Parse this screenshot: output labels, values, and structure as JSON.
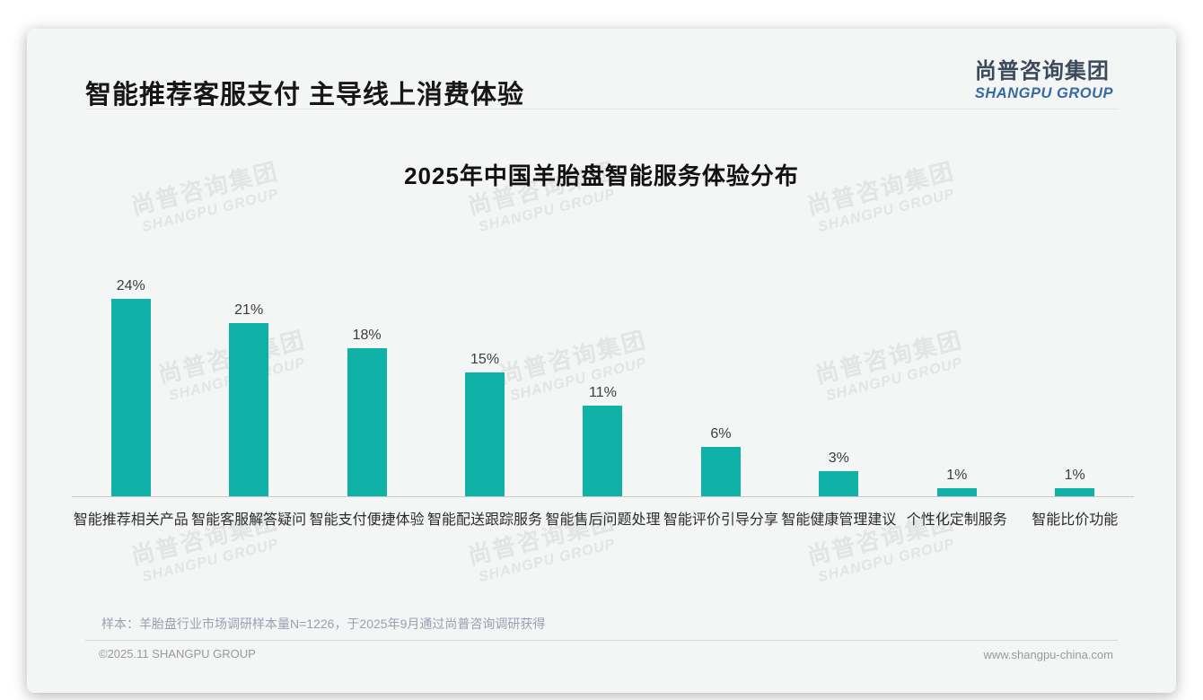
{
  "page": {
    "title": "智能推荐客服支付 主导线上消费体验",
    "logo": {
      "cn": "尚普咨询集团",
      "en": "SHANGPU GROUP"
    },
    "watermark": {
      "cn": "尚普咨询集团",
      "en": "SHANGPU GROUP"
    },
    "note": "样本：羊胎盘行业市场调研样本量N=1226，于2025年9月通过尚普咨询调研获得",
    "footer": {
      "left": "©2025.11 SHANGPU GROUP",
      "right": "www.shangpu-china.com"
    }
  },
  "chart_data": {
    "type": "bar",
    "title": "2025年中国羊胎盘智能服务体验分布",
    "categories": [
      "智能推荐相关产品",
      "智能客服解答疑问",
      "智能支付便捷体验",
      "智能配送跟踪服务",
      "智能售后问题处理",
      "智能评价引导分享",
      "智能健康管理建议",
      "个性化定制服务",
      "智能比价功能"
    ],
    "values": [
      24,
      21,
      18,
      15,
      11,
      6,
      3,
      1,
      1
    ],
    "unit": "%",
    "bar_color": "#10b1a7",
    "value_label_color": "#3d3d3d",
    "axis_color": "#c9c9c9",
    "ylim": [
      0,
      26
    ],
    "grid": false,
    "legend": false,
    "data_labels": true,
    "xlabel": "",
    "ylabel": ""
  }
}
